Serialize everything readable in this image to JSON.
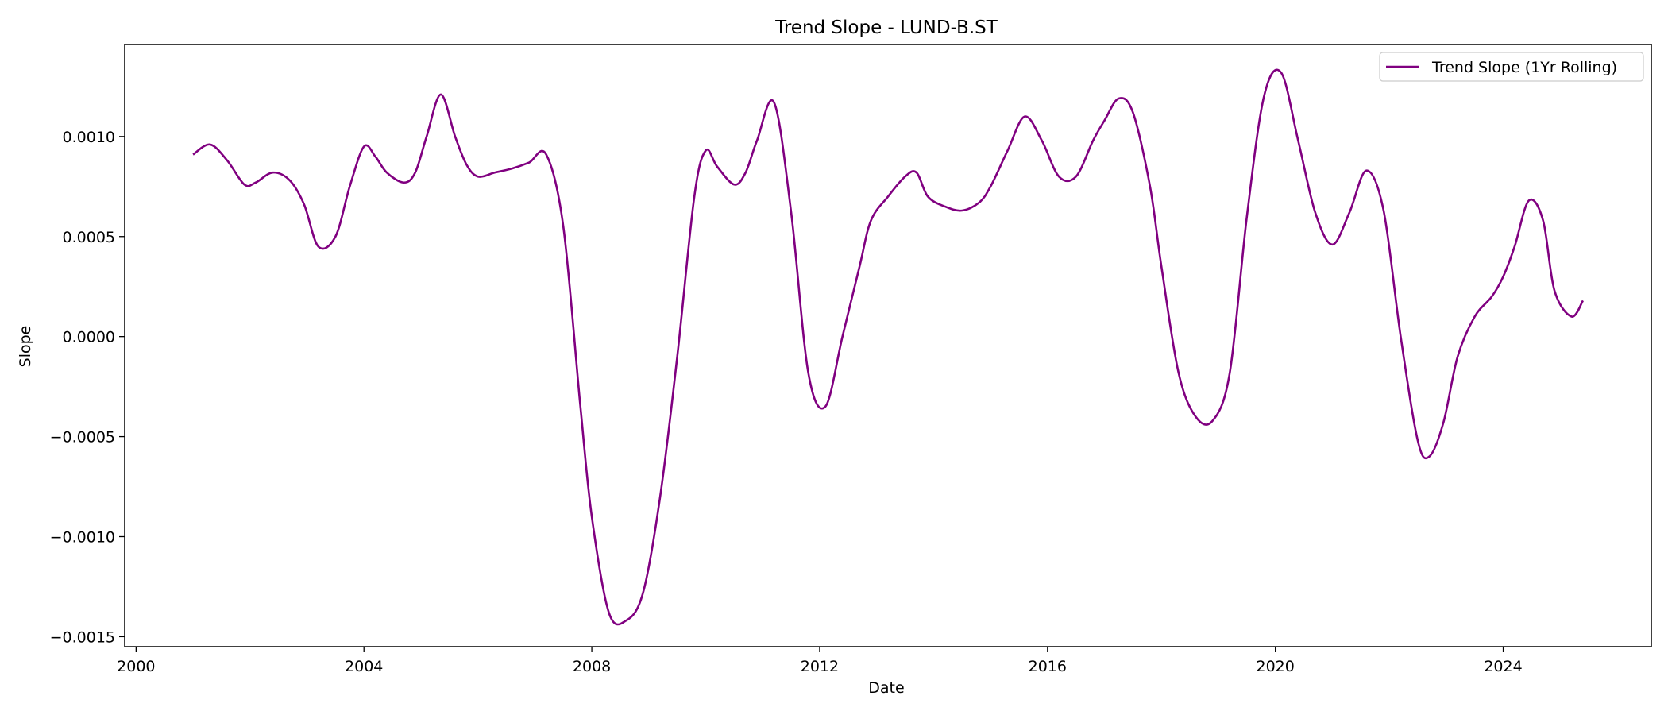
{
  "chart_data": {
    "type": "line",
    "title": "Trend Slope - LUND-B.ST",
    "xlabel": "Date",
    "ylabel": "Slope",
    "x_ticks": [
      2000,
      2004,
      2008,
      2012,
      2016,
      2020,
      2024
    ],
    "y_ticks": [
      -0.0015,
      -0.001,
      -0.0005,
      0.0,
      0.0005,
      0.001
    ],
    "y_tick_labels": [
      "−0.0015",
      "−0.0010",
      "−0.0005",
      "0.0000",
      "0.0005",
      "0.0010"
    ],
    "xlim": [
      1999.8,
      2026.6
    ],
    "ylim": [
      -0.00155,
      0.00146
    ],
    "grid": false,
    "legend": {
      "placement": "top-right",
      "entries": [
        "Trend Slope (1Yr Rolling)"
      ]
    },
    "series": [
      {
        "name": "Trend Slope (1Yr Rolling)",
        "color": "#800080",
        "x": [
          2001.0,
          2001.3,
          2001.6,
          2001.9,
          2002.1,
          2002.4,
          2002.7,
          2002.95,
          2003.2,
          2003.5,
          2003.75,
          2004.0,
          2004.2,
          2004.4,
          2004.7,
          2004.9,
          2005.1,
          2005.35,
          2005.6,
          2005.8,
          2006.0,
          2006.3,
          2006.6,
          2006.9,
          2007.2,
          2007.5,
          2007.8,
          2008.0,
          2008.3,
          2008.6,
          2008.9,
          2009.2,
          2009.5,
          2009.8,
          2010.0,
          2010.2,
          2010.5,
          2010.7,
          2010.9,
          2011.2,
          2011.5,
          2011.8,
          2012.1,
          2012.4,
          2012.7,
          2012.9,
          2013.2,
          2013.5,
          2013.7,
          2013.9,
          2014.2,
          2014.5,
          2014.8,
          2015.0,
          2015.3,
          2015.6,
          2015.9,
          2016.2,
          2016.5,
          2016.8,
          2017.0,
          2017.25,
          2017.5,
          2017.8,
          2018.0,
          2018.3,
          2018.6,
          2018.9,
          2019.2,
          2019.5,
          2019.8,
          2020.1,
          2020.4,
          2020.7,
          2021.0,
          2021.3,
          2021.6,
          2021.9,
          2022.2,
          2022.5,
          2022.7,
          2022.95,
          2023.2,
          2023.5,
          2023.8,
          2024.0,
          2024.2,
          2024.45,
          2024.7,
          2024.9,
          2025.2,
          2025.4
        ],
        "y": [
          0.00091,
          0.00096,
          0.00088,
          0.00076,
          0.00077,
          0.00082,
          0.00078,
          0.00066,
          0.00045,
          0.0005,
          0.00075,
          0.00095,
          0.0009,
          0.00082,
          0.00077,
          0.00082,
          0.001,
          0.00121,
          0.001,
          0.00086,
          0.0008,
          0.00082,
          0.00084,
          0.00087,
          0.00091,
          0.00055,
          -0.00035,
          -0.0009,
          -0.00138,
          -0.00142,
          -0.00128,
          -0.0008,
          -0.0001,
          0.0007,
          0.00093,
          0.00085,
          0.00076,
          0.00082,
          0.00098,
          0.00117,
          0.00062,
          -0.00018,
          -0.00035,
          0.0,
          0.00035,
          0.00058,
          0.0007,
          0.0008,
          0.00082,
          0.0007,
          0.00065,
          0.00063,
          0.00067,
          0.00075,
          0.00093,
          0.0011,
          0.00098,
          0.0008,
          0.0008,
          0.00098,
          0.00108,
          0.00119,
          0.00112,
          0.00075,
          0.00035,
          -0.00018,
          -0.0004,
          -0.00042,
          -0.00018,
          0.0006,
          0.0012,
          0.00132,
          0.00098,
          0.00062,
          0.00046,
          0.00062,
          0.00083,
          0.00063,
          0.0,
          -0.00052,
          -0.0006,
          -0.00043,
          -0.0001,
          0.0001,
          0.0002,
          0.0003,
          0.00045,
          0.00068,
          0.00058,
          0.00023,
          0.0001,
          0.00018
        ]
      }
    ]
  }
}
